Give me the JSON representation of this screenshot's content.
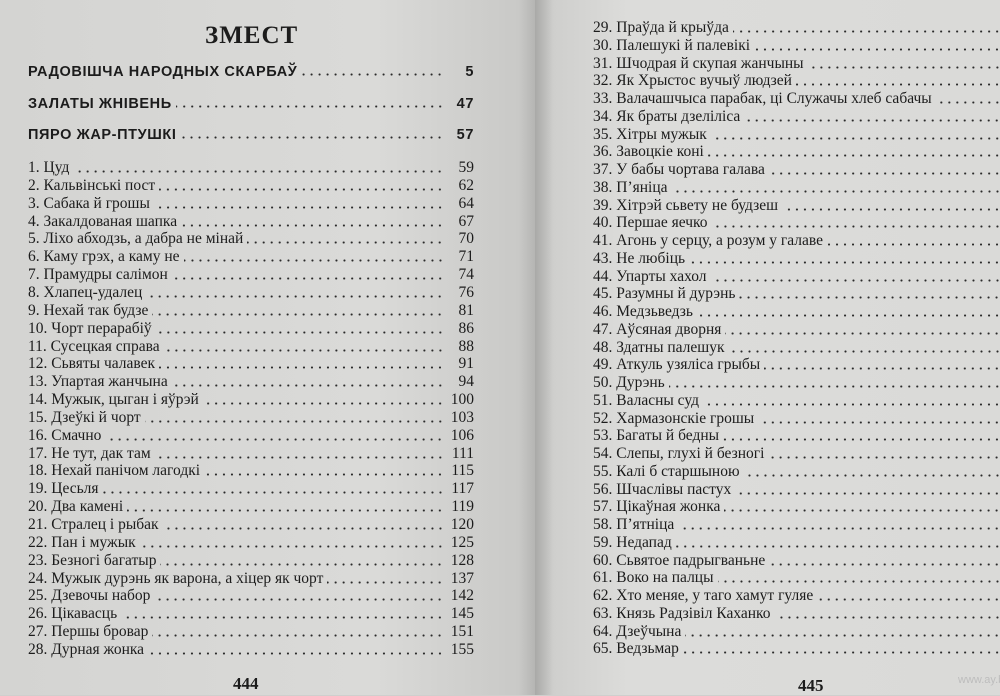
{
  "left_page": {
    "title": "ЗМЕСТ",
    "sections": [
      {
        "label": "РАДОВІШЧА НАРОДНЫХ СКАРБАЎ",
        "page": "5"
      },
      {
        "label": "ЗАЛАТЫ ЖНІВЕНЬ",
        "page": "47"
      },
      {
        "label": "ПЯРО ЖАР-ПТУШКІ",
        "page": "57"
      }
    ],
    "entries": [
      {
        "label": "1. Цуд",
        "page": "59"
      },
      {
        "label": "2. Кальвінські пост",
        "page": "62"
      },
      {
        "label": "3. Сабака й грошы",
        "page": "64"
      },
      {
        "label": "4. Закалдованая шапка",
        "page": "67"
      },
      {
        "label": "5. Ліхо абходзь, а дабра не мінай",
        "page": "70"
      },
      {
        "label": "6. Каму грэх, а каму не",
        "page": "71"
      },
      {
        "label": "7. Прамудры салімон",
        "page": "74"
      },
      {
        "label": "8. Хлапец-удалец",
        "page": "76"
      },
      {
        "label": "9. Нехай так будзе",
        "page": "81"
      },
      {
        "label": "10. Чорт перарабіў",
        "page": "86"
      },
      {
        "label": "11. Сусецкая справа",
        "page": "88"
      },
      {
        "label": "12. Сьвяты чалавек",
        "page": "91"
      },
      {
        "label": "13. Упартая жанчына",
        "page": "94"
      },
      {
        "label": "14. Мужык, цыган і яўрэй",
        "page": "100"
      },
      {
        "label": "15. Дзеўкі й чорт",
        "page": "103"
      },
      {
        "label": "16. Смачно",
        "page": "106"
      },
      {
        "label": "17. Не тут, дак там",
        "page": "111"
      },
      {
        "label": "18. Нехай панічом лагодкі",
        "page": "115"
      },
      {
        "label": "19. Цесьля",
        "page": "117"
      },
      {
        "label": "20. Два камені",
        "page": "119"
      },
      {
        "label": "21. Стралец і рыбак",
        "page": "120"
      },
      {
        "label": "22. Пан і мужык",
        "page": "125"
      },
      {
        "label": "23. Безногі багатыр",
        "page": "128"
      },
      {
        "label": "24. Мужык дурэнь як варона, а хіцер як чорт",
        "page": "137"
      },
      {
        "label": "25. Дзевочы набор",
        "page": "142"
      },
      {
        "label": "26. Цікавасць",
        "page": "145"
      },
      {
        "label": "27. Першы бровар",
        "page": "151"
      },
      {
        "label": "28. Дурная жонка",
        "page": "155"
      }
    ],
    "folio": "444"
  },
  "right_page": {
    "entries": [
      {
        "label": "29. Праўда й крыўда"
      },
      {
        "label": "30. Палешукі й палевікі"
      },
      {
        "label": "31. Шчодрая й скупая жанчыны"
      },
      {
        "label": "32. Як Хрыстос вучыў людзей"
      },
      {
        "label": "33. Валачашчыса парабак, ці Служачы хлеб сабачы"
      },
      {
        "label": "34. Як браты дзеліліса"
      },
      {
        "label": "35. Хітры мужык"
      },
      {
        "label": "36. Завоцкіе коні"
      },
      {
        "label": "37. У бабы чортава галава"
      },
      {
        "label": "38. П’яніца"
      },
      {
        "label": "39. Хітрэй сьвету не будзеш"
      },
      {
        "label": "40. Першае яечко"
      },
      {
        "label": "41. Агонь у серцу, а розум у галаве"
      },
      {
        "label": "43. Не любіць"
      },
      {
        "label": "44. Упарты хахол"
      },
      {
        "label": "45. Разумны й дурэнь"
      },
      {
        "label": "46. Медзьведзь"
      },
      {
        "label": "47. Аўсяная дворня"
      },
      {
        "label": "48. Здатны палешук"
      },
      {
        "label": "49. Аткуль узяліса грыбы"
      },
      {
        "label": "50. Дурэнь"
      },
      {
        "label": "51. Валасны суд"
      },
      {
        "label": "52. Хармазонскіе грошы"
      },
      {
        "label": "53. Багаты й бедны"
      },
      {
        "label": "54. Слепы, глухі й безногі"
      },
      {
        "label": "55. Калі б старшыною"
      },
      {
        "label": "56. Шчаслівы пастух"
      },
      {
        "label": "57. Цікаўная жонка"
      },
      {
        "label": "58. П’ятніца"
      },
      {
        "label": "59. Недапад"
      },
      {
        "label": "60. Сьвятое падрыгваньне"
      },
      {
        "label": "61. Воко на палцы"
      },
      {
        "label": "62. Хто меняе, у таго хамут гуляе"
      },
      {
        "label": "63. Князь Радзівіл Каханко"
      },
      {
        "label": "64. Дзеўчына"
      },
      {
        "label": "65. Ведзьмар"
      }
    ],
    "folio": "445"
  },
  "watermark": "www.ay.by"
}
